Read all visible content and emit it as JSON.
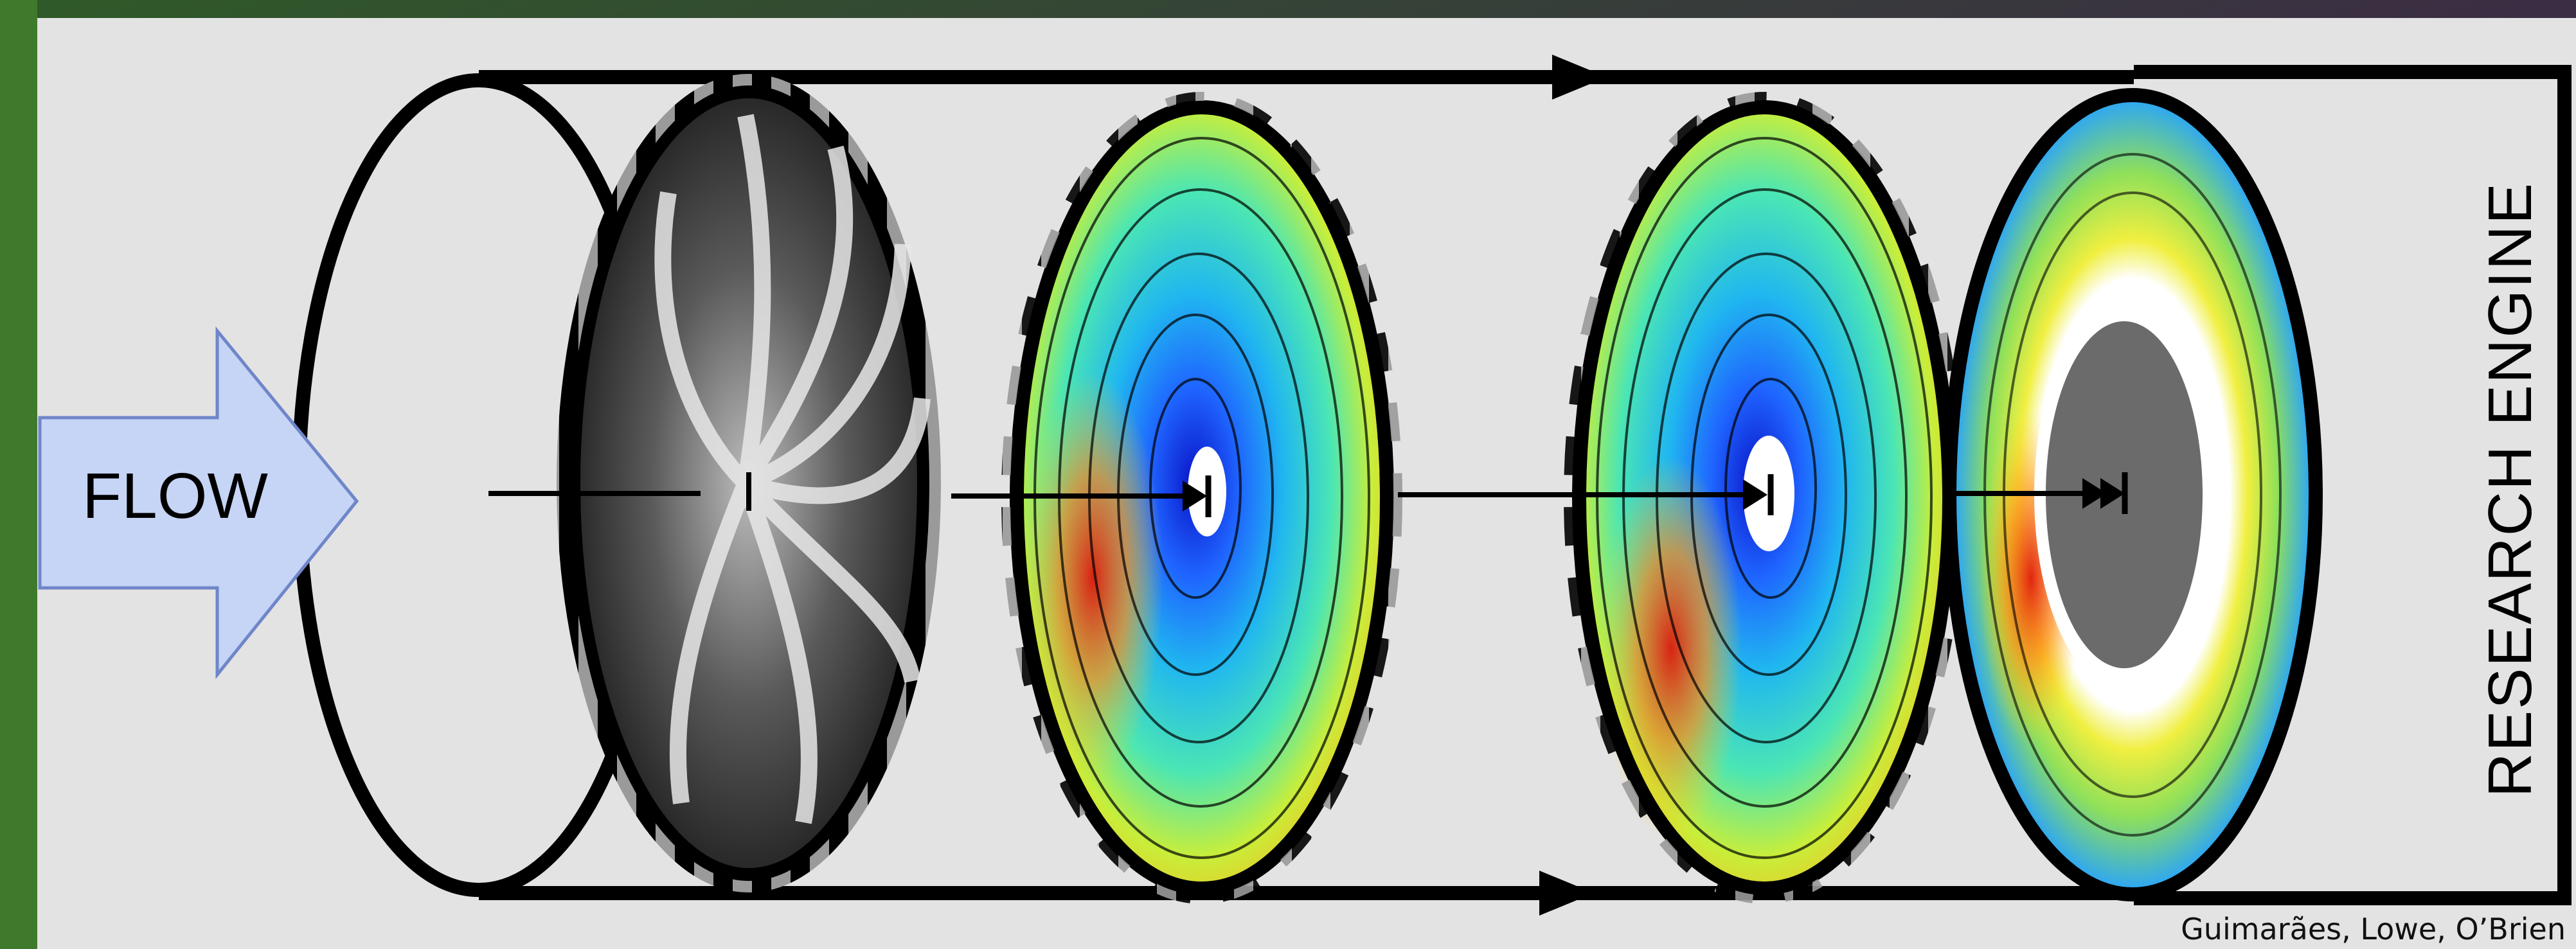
{
  "diagram": {
    "flow_label": "FLOW",
    "engine_label": "RESEARCH ENGINE",
    "credit": "Guimarães, Lowe, O’Brien"
  },
  "colors": {
    "panel": "#e3e3e3",
    "arrow_fill": "#c6d4f5",
    "arrow_stroke": "#6f86c9",
    "outline": "#000000",
    "hub": "#6b6b6b"
  },
  "icons": [
    "flow-arrow-icon",
    "direction-arrow-icon"
  ]
}
